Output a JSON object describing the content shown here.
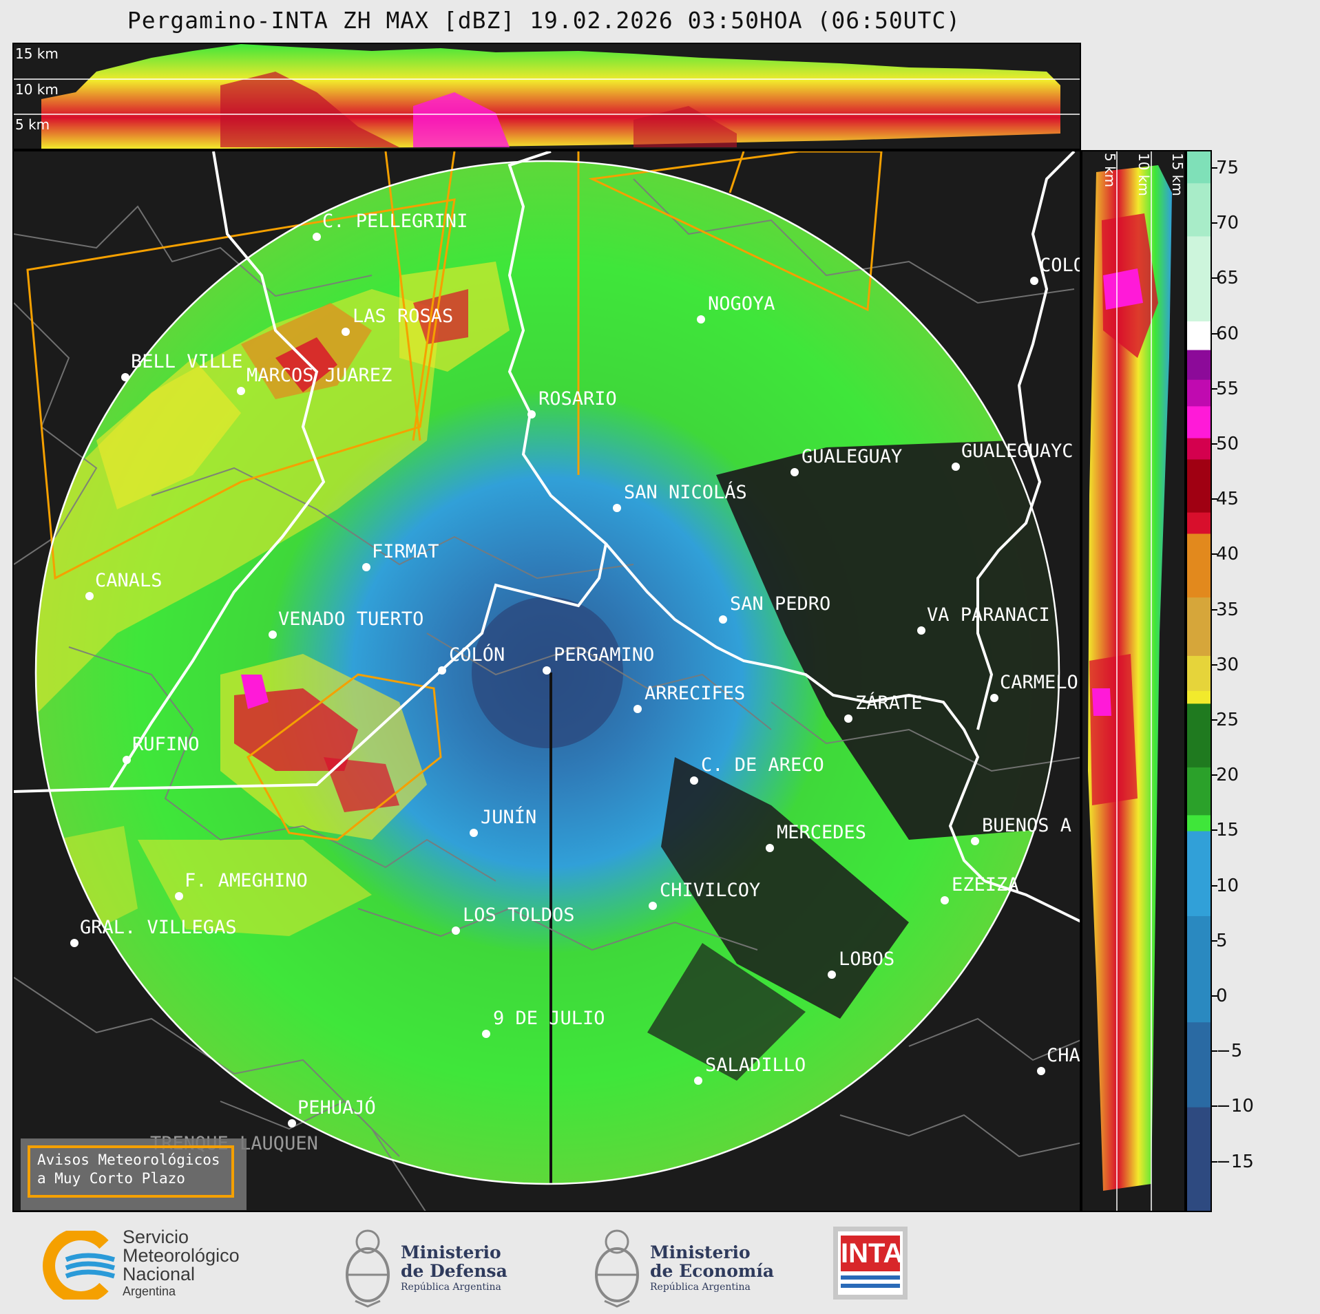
{
  "title": "Pergamino-INTA ZH MAX [dBZ] 19.02.2026 03:50HOA (06:50UTC)",
  "height_profile_top": {
    "labels": [
      "15 km",
      "10 km",
      "5 km"
    ]
  },
  "height_profile_side": {
    "labels": [
      "5 km",
      "10 km",
      "15 km"
    ]
  },
  "colorbar": {
    "unit": "dBZ",
    "ticks": [
      "75",
      "70",
      "65",
      "60",
      "55",
      "50",
      "45",
      "40",
      "35",
      "30",
      "25",
      "20",
      "15",
      "10",
      "5",
      "0",
      "−5",
      "−10",
      "−15"
    ],
    "colors": {
      "noise_low": "#2e3a6b",
      "blue_low": "#2a67a3",
      "blue": "#31a0d8",
      "green": "#3fe63a",
      "dark_green": "#1f7a1f",
      "yellow": "#f2ea2c",
      "orange": "#e2891d",
      "red": "#d80f2c",
      "dark_red": "#a00012",
      "magenta": "#ff1ad8",
      "purple": "#8c0a99",
      "white": "#ffffff",
      "mint": "#7fe0b8"
    }
  },
  "cities": [
    {
      "name": "C. PELLEGRINI"
    },
    {
      "name": "LAS ROSAS"
    },
    {
      "name": "BELL VILLE"
    },
    {
      "name": "MARCOS JUAREZ"
    },
    {
      "name": "NOGOYA"
    },
    {
      "name": "COLO"
    },
    {
      "name": "ROSARIO"
    },
    {
      "name": "GUALEGUAYC"
    },
    {
      "name": "GUALEGUAY"
    },
    {
      "name": "SAN NICOLÁS"
    },
    {
      "name": "FIRMAT"
    },
    {
      "name": "CANALS"
    },
    {
      "name": "SAN PEDRO"
    },
    {
      "name": "VA PARANACI"
    },
    {
      "name": "VENADO TUERTO"
    },
    {
      "name": "COLÓN"
    },
    {
      "name": "PERGAMINO"
    },
    {
      "name": "CARMELO"
    },
    {
      "name": "ARRECIFES"
    },
    {
      "name": "ZÁRATE"
    },
    {
      "name": "RUFINO"
    },
    {
      "name": "C. DE ARECO"
    },
    {
      "name": "JUNÍN"
    },
    {
      "name": "BUENOS A"
    },
    {
      "name": "MERCEDES"
    },
    {
      "name": "F. AMEGHINO"
    },
    {
      "name": "EZEIZA"
    },
    {
      "name": "CHIVILCOY"
    },
    {
      "name": "LOS TOLDOS"
    },
    {
      "name": "GRAL. VILLEGAS"
    },
    {
      "name": "LOBOS"
    },
    {
      "name": "9 DE JULIO"
    },
    {
      "name": "CHA"
    },
    {
      "name": "SALADILLO"
    },
    {
      "name": "PEHUAJÓ"
    },
    {
      "name": "TRENQUE LAUQUEN"
    }
  ],
  "warnings_box": {
    "line1": "Avisos Meteorológicos",
    "line2": "a Muy Corto Plazo"
  },
  "logos": {
    "smn": {
      "line1": "Servicio",
      "line2": "Meteorológico",
      "line3": "Nacional",
      "line4": "Argentina"
    },
    "defensa": {
      "line1": "Ministerio",
      "line2": "de Defensa",
      "line3": "República Argentina"
    },
    "economia": {
      "line1": "Ministerio",
      "line2": "de Economía",
      "line3": "República Argentina"
    },
    "inta": {
      "text": "INTA"
    }
  }
}
